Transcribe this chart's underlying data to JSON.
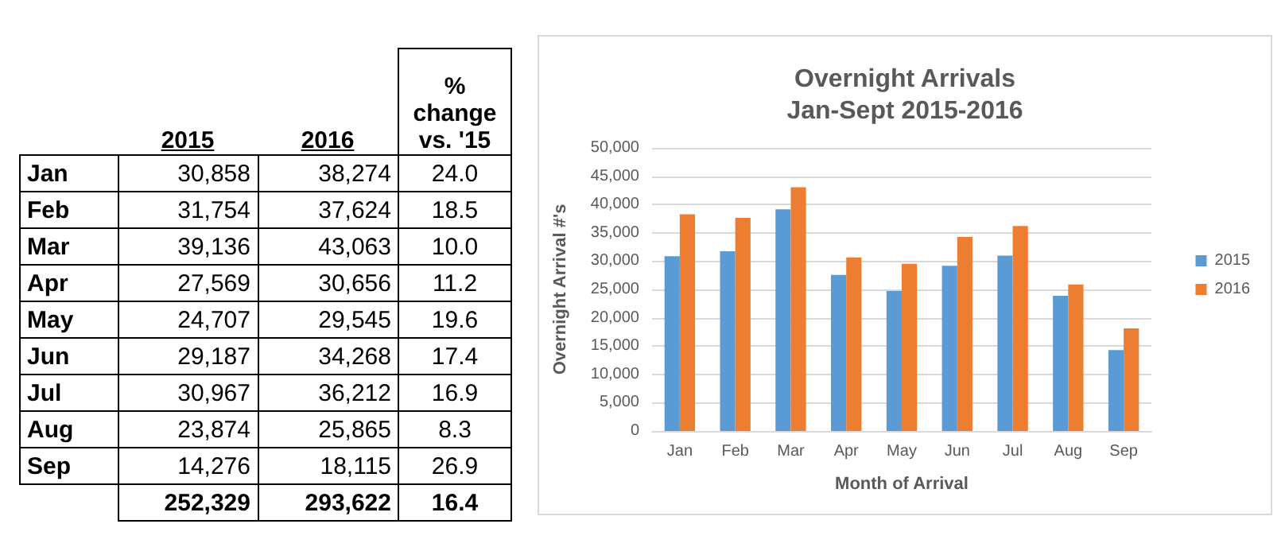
{
  "chart_data": [
    {
      "type": "other",
      "data_labels": true,
      "categories": [
        "Jan",
        "Feb",
        "Mar",
        "Apr",
        "May",
        "Jun",
        "Jul",
        "Aug",
        "Sep"
      ],
      "series": [
        {
          "name": "2015",
          "values": [
            30858,
            31754,
            39136,
            27569,
            24707,
            29187,
            30967,
            23874,
            14276
          ],
          "value_labels": [
            "30,858",
            "31,754",
            "39,136",
            "27,569",
            "24,707",
            "29,187",
            "30,967",
            "23,874",
            "14,276"
          ]
        },
        {
          "name": "2016",
          "values": [
            38274,
            37624,
            43063,
            30656,
            29545,
            34268,
            36212,
            25865,
            18115
          ],
          "value_labels": [
            "38,274",
            "37,624",
            "43,063",
            "30,656",
            "29,545",
            "34,268",
            "36,212",
            "25,865",
            "18,115"
          ]
        },
        {
          "name": "% change vs. '15",
          "values": [
            24.0,
            18.5,
            10.0,
            11.2,
            19.6,
            17.4,
            16.9,
            8.3,
            26.9
          ],
          "value_labels": [
            "24.0",
            "18.5",
            "10.0",
            "11.2",
            "19.6",
            "17.4",
            "16.9",
            "8.3",
            "26.9"
          ]
        }
      ],
      "annotations": [
        "252,329",
        "293,622",
        "16.4"
      ]
    },
    {
      "type": "bar",
      "title": "Overnight Arrivals",
      "subtitle": "Jan-Sept 2015-2016",
      "xlabel": "Month of Arrival",
      "ylabel": "Overnight Arrival #'s",
      "categories": [
        "Jan",
        "Feb",
        "Mar",
        "Apr",
        "May",
        "Jun",
        "Jul",
        "Aug",
        "Sep"
      ],
      "series": [
        {
          "name": "2015",
          "color": "#5b9bd5",
          "values": [
            30858,
            31754,
            39136,
            27569,
            24707,
            29187,
            30967,
            23874,
            14276
          ]
        },
        {
          "name": "2016",
          "color": "#ed7d31",
          "values": [
            38274,
            37624,
            43063,
            30656,
            29545,
            34268,
            36212,
            25865,
            18115
          ]
        }
      ],
      "ylim": [
        0,
        50000
      ],
      "yticks": [
        {
          "value": 0,
          "label": "0"
        },
        {
          "value": 5000,
          "label": "5,000"
        },
        {
          "value": 10000,
          "label": "10,000"
        },
        {
          "value": 15000,
          "label": "15,000"
        },
        {
          "value": 20000,
          "label": "20,000"
        },
        {
          "value": 25000,
          "label": "25,000"
        },
        {
          "value": 30000,
          "label": "30,000"
        },
        {
          "value": 35000,
          "label": "35,000"
        },
        {
          "value": 40000,
          "label": "40,000"
        },
        {
          "value": 45000,
          "label": "45,000"
        },
        {
          "value": 50000,
          "label": "50,000"
        }
      ],
      "grid": "y",
      "legend": "right"
    }
  ]
}
